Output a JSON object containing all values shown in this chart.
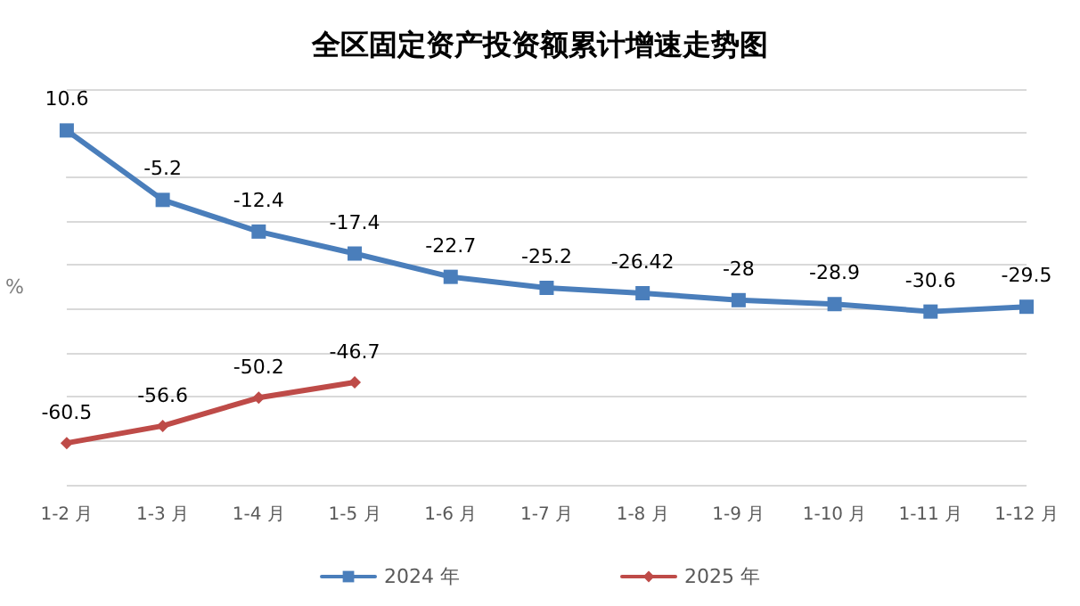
{
  "chart_data": {
    "type": "line",
    "title": "全区固定资产投资额累计增速走势图",
    "ylabel": "%",
    "categories": [
      "1-2 月",
      "1-3 月",
      "1-4 月",
      "1-5 月",
      "1-6 月",
      "1-7 月",
      "1-8 月",
      "1-9 月",
      "1-10 月",
      "1-11 月",
      "1-12 月"
    ],
    "series": [
      {
        "name": "2024 年",
        "color": "#4a7ebb",
        "marker": "square",
        "values": [
          10.6,
          -5.2,
          -12.4,
          -17.4,
          -22.7,
          -25.2,
          -26.42,
          -28,
          -28.9,
          -30.6,
          -29.5
        ]
      },
      {
        "name": "2025 年",
        "color": "#be4b48",
        "marker": "diamond",
        "values": [
          -60.5,
          -56.6,
          -50.2,
          -46.7,
          null,
          null,
          null,
          null,
          null,
          null,
          null
        ]
      }
    ],
    "ylim": [
      -70,
      20
    ],
    "yticks": [
      -70,
      -60,
      -50,
      -40,
      -30,
      -20,
      -10,
      0,
      10,
      20
    ],
    "tick_labels": "x",
    "grid": "y",
    "legend": "bottom",
    "data_labels": true
  }
}
